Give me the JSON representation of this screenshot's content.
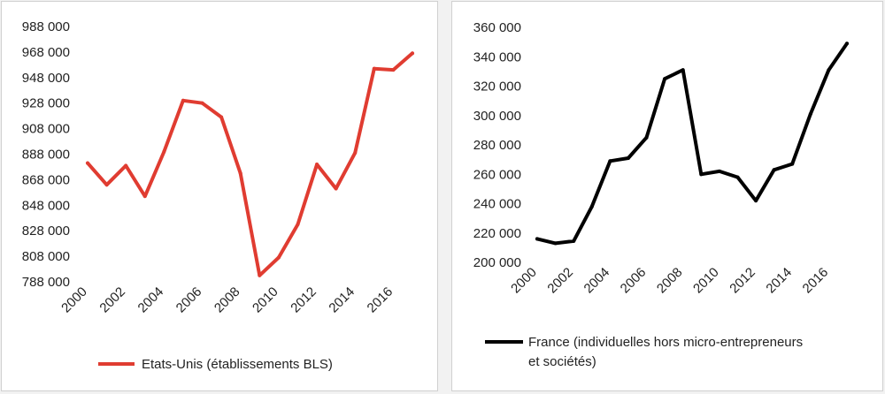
{
  "chart_data": [
    {
      "type": "line",
      "x": [
        2000,
        2001,
        2002,
        2003,
        2004,
        2005,
        2006,
        2007,
        2008,
        2009,
        2010,
        2011,
        2012,
        2013,
        2014,
        2015,
        2016,
        2017
      ],
      "x_tick_labels": [
        "2000",
        "2002",
        "2004",
        "2006",
        "2008",
        "2010",
        "2012",
        "2014",
        "2016"
      ],
      "y_tick_labels": [
        "988 000",
        "968 000",
        "948 000",
        "928 000",
        "908 000",
        "888 000",
        "868 000",
        "848 000",
        "828 000",
        "808 000",
        "788 000"
      ],
      "ylim": [
        788000,
        988000
      ],
      "grid": false,
      "legend_position": "bottom",
      "series": [
        {
          "name": "Etats-Unis (établissements BLS)",
          "color": "#e03c31",
          "values": [
            881000,
            864000,
            879000,
            855000,
            890000,
            930000,
            928000,
            917000,
            873000,
            793000,
            807000,
            833000,
            880000,
            861000,
            889000,
            955000,
            954000,
            967000
          ]
        }
      ]
    },
    {
      "type": "line",
      "x": [
        2000,
        2001,
        2002,
        2003,
        2004,
        2005,
        2006,
        2007,
        2008,
        2009,
        2010,
        2011,
        2012,
        2013,
        2014,
        2015,
        2016,
        2017
      ],
      "x_tick_labels": [
        "2000",
        "2002",
        "2004",
        "2006",
        "2008",
        "2010",
        "2012",
        "2014",
        "2016"
      ],
      "y_tick_labels": [
        "360 000",
        "340 000",
        "320 000",
        "300 000",
        "280 000",
        "260 000",
        "240 000",
        "220 000",
        "200 000"
      ],
      "ylim": [
        200000,
        360000
      ],
      "grid": false,
      "legend_position": "bottom",
      "series": [
        {
          "name_lines": [
            "France (individuelles hors micro-entrepreneurs",
            "et sociétés)"
          ],
          "color": "#000000",
          "values": [
            216000,
            213000,
            214500,
            238000,
            269000,
            271000,
            285000,
            325000,
            331000,
            260000,
            262000,
            258000,
            242000,
            263000,
            267000,
            301000,
            331000,
            349000
          ]
        }
      ]
    }
  ]
}
